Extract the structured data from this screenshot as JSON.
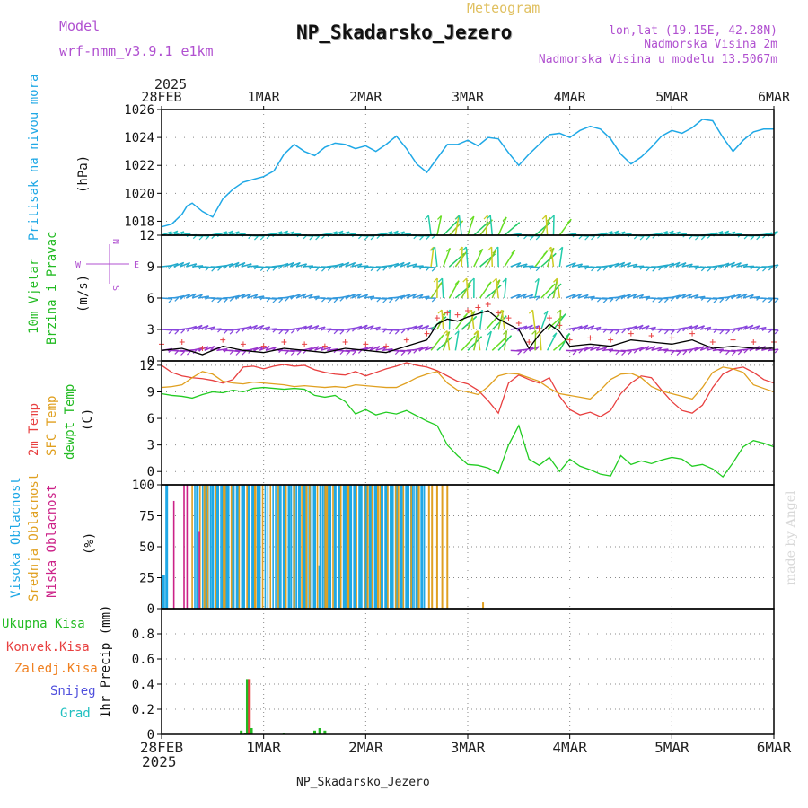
{
  "header": {
    "model_label": "Model",
    "model_name": "wrf-nmm_v3.9.1 e1km",
    "product": "Meteogram",
    "station": "NP_Skadarsko_Jezero",
    "lonlat": "lon,lat (19.15E, 42.28N)",
    "elevation": "Nadmorska Visina 2m",
    "model_elevation": "Nadmorska Visina u modelu 13.5067m",
    "footer": "NP_Skadarsko_Jezero",
    "credit": "made by Angel"
  },
  "colors": {
    "pressure": "#1fa8e6",
    "temp2m": "#e84040",
    "sfc": "#e0a020",
    "dewpt": "#22cc22",
    "high_cloud": "#1fa8e6",
    "mid_cloud": "#e0a020",
    "low_cloud": "#cc2288",
    "total_precip": "#22bb22",
    "conv_precip": "#e84040",
    "frozen": "#f08020",
    "snow": "#5050dd",
    "hail": "#20c0c0",
    "title": "#e0c060",
    "model": "#b050d0"
  },
  "time_axis": {
    "top_year": "2025",
    "bottom_year": "2025",
    "ticks": [
      "28FEB",
      "1MAR",
      "2MAR",
      "3MAR",
      "4MAR",
      "5MAR",
      "6MAR"
    ],
    "days": [
      0,
      1,
      2,
      3,
      4,
      5,
      6
    ]
  },
  "chart_data": [
    {
      "type": "line",
      "name": "pressure",
      "ylabel": "Pritisak na nivou mora",
      "unit": "(hPa)",
      "ylim": [
        1017,
        1026
      ],
      "yticks": [
        1018,
        1020,
        1022,
        1024,
        1026
      ],
      "x": [
        0.0,
        0.1,
        0.2,
        0.25,
        0.3,
        0.4,
        0.5,
        0.6,
        0.7,
        0.8,
        0.9,
        1.0,
        1.1,
        1.2,
        1.3,
        1.4,
        1.5,
        1.6,
        1.7,
        1.8,
        1.9,
        2.0,
        2.1,
        2.2,
        2.3,
        2.4,
        2.5,
        2.6,
        2.7,
        2.8,
        2.9,
        3.0,
        3.1,
        3.2,
        3.3,
        3.4,
        3.5,
        3.6,
        3.7,
        3.8,
        3.9,
        4.0,
        4.1,
        4.2,
        4.3,
        4.4,
        4.5,
        4.6,
        4.7,
        4.8,
        4.9,
        5.0,
        5.1,
        5.2,
        5.3,
        5.4,
        5.5,
        5.6,
        5.7,
        5.8,
        5.9,
        6.0
      ],
      "values": [
        1017.6,
        1017.8,
        1018.5,
        1019.1,
        1019.3,
        1018.7,
        1018.3,
        1019.6,
        1020.3,
        1020.8,
        1021.0,
        1021.2,
        1021.6,
        1022.8,
        1023.5,
        1023.0,
        1022.7,
        1023.3,
        1023.6,
        1023.5,
        1023.2,
        1023.4,
        1023.0,
        1023.5,
        1024.1,
        1023.2,
        1022.1,
        1021.5,
        1022.5,
        1023.5,
        1023.5,
        1023.8,
        1023.4,
        1024.0,
        1023.9,
        1022.9,
        1022.0,
        1022.8,
        1023.5,
        1024.2,
        1024.3,
        1024.0,
        1024.5,
        1024.8,
        1024.6,
        1023.9,
        1022.8,
        1022.1,
        1022.6,
        1023.3,
        1024.1,
        1024.5,
        1024.3,
        1024.7,
        1025.3,
        1025.2,
        1024.0,
        1023.0,
        1023.8,
        1024.4,
        1024.6,
        1024.6
      ]
    },
    {
      "type": "line",
      "name": "wind",
      "ylabel": "10m Vjetar",
      "ylabel2": "Brzina i Pravac",
      "unit": "(m/s)",
      "ylim": [
        0,
        12
      ],
      "yticks": [
        0,
        3,
        6,
        9,
        12
      ],
      "compass": [
        "W",
        "E",
        "N",
        "S"
      ],
      "x": [
        0.0,
        0.2,
        0.4,
        0.6,
        0.8,
        1.0,
        1.2,
        1.4,
        1.6,
        1.8,
        2.0,
        2.2,
        2.4,
        2.6,
        2.7,
        2.8,
        2.9,
        3.0,
        3.1,
        3.2,
        3.3,
        3.4,
        3.5,
        3.6,
        3.7,
        3.8,
        3.9,
        4.0,
        4.2,
        4.4,
        4.6,
        4.8,
        5.0,
        5.2,
        5.4,
        5.6,
        5.8,
        6.0
      ],
      "values": [
        1.0,
        1.2,
        0.6,
        1.4,
        1.0,
        0.8,
        1.2,
        1.0,
        0.8,
        1.2,
        1.0,
        0.8,
        1.4,
        2.0,
        3.5,
        4.0,
        3.8,
        4.2,
        4.5,
        4.8,
        4.0,
        3.5,
        3.0,
        1.2,
        2.5,
        3.5,
        2.8,
        1.4,
        1.6,
        1.4,
        2.0,
        1.8,
        1.6,
        2.0,
        1.2,
        1.4,
        1.2,
        1.2
      ],
      "barb_rows": [
        1,
        3,
        6,
        9,
        12
      ]
    },
    {
      "type": "line",
      "name": "temperature",
      "ylabel": "2m Temp",
      "ylabel2": "SFC Temp",
      "ylabel3": "dewpt Temp",
      "unit": "(C)",
      "ylim": [
        -1.5,
        12.5
      ],
      "yticks": [
        0,
        3,
        6,
        9,
        12
      ],
      "x": [
        0.0,
        0.1,
        0.2,
        0.3,
        0.4,
        0.5,
        0.6,
        0.7,
        0.8,
        0.9,
        1.0,
        1.1,
        1.2,
        1.3,
        1.4,
        1.5,
        1.6,
        1.7,
        1.8,
        1.9,
        2.0,
        2.1,
        2.2,
        2.3,
        2.4,
        2.5,
        2.6,
        2.7,
        2.8,
        2.9,
        3.0,
        3.1,
        3.2,
        3.3,
        3.4,
        3.5,
        3.6,
        3.7,
        3.8,
        3.9,
        4.0,
        4.1,
        4.2,
        4.3,
        4.4,
        4.5,
        4.6,
        4.7,
        4.8,
        4.9,
        5.0,
        5.1,
        5.2,
        5.3,
        5.4,
        5.5,
        5.6,
        5.7,
        5.8,
        5.9,
        6.0
      ],
      "series": [
        {
          "name": "2m Temp",
          "values": [
            12.0,
            11.2,
            10.8,
            10.6,
            10.5,
            10.3,
            10.0,
            10.4,
            11.8,
            11.9,
            11.6,
            11.9,
            12.1,
            11.9,
            12.0,
            11.5,
            11.2,
            11.0,
            10.9,
            11.3,
            10.8,
            11.2,
            11.6,
            11.9,
            12.3,
            12.0,
            11.8,
            11.4,
            10.8,
            10.2,
            9.9,
            9.2,
            8.0,
            6.6,
            10.0,
            10.9,
            10.4,
            10.0,
            10.6,
            8.5,
            7.0,
            6.4,
            6.7,
            6.2,
            6.9,
            8.8,
            10.0,
            10.8,
            10.6,
            9.2,
            7.9,
            6.9,
            6.6,
            7.5,
            9.5,
            11.0,
            11.6,
            11.8,
            11.2,
            10.4,
            10.0
          ]
        },
        {
          "name": "SFC Temp",
          "values": [
            9.5,
            9.6,
            9.8,
            10.6,
            11.3,
            11.0,
            10.2,
            10.0,
            9.9,
            10.1,
            10.0,
            9.9,
            9.8,
            9.6,
            9.7,
            9.6,
            9.5,
            9.6,
            9.5,
            9.8,
            9.7,
            9.6,
            9.5,
            9.5,
            10.0,
            10.6,
            11.0,
            11.3,
            10.0,
            9.2,
            9.0,
            8.7,
            9.6,
            10.8,
            11.1,
            11.0,
            10.6,
            10.2,
            9.4,
            8.8,
            8.6,
            8.4,
            8.2,
            9.2,
            10.4,
            11.0,
            11.1,
            10.6,
            9.6,
            9.1,
            8.8,
            8.5,
            8.2,
            9.5,
            11.2,
            11.8,
            11.6,
            11.2,
            9.8,
            9.4,
            9.0
          ]
        },
        {
          "name": "dewpt Temp",
          "values": [
            8.8,
            8.6,
            8.5,
            8.3,
            8.7,
            9.0,
            8.9,
            9.2,
            9.0,
            9.4,
            9.5,
            9.4,
            9.3,
            9.4,
            9.3,
            8.6,
            8.4,
            8.6,
            7.9,
            6.5,
            7.0,
            6.4,
            6.7,
            6.5,
            6.9,
            6.3,
            5.7,
            5.2,
            3.0,
            1.8,
            0.8,
            0.7,
            0.4,
            -0.2,
            3.0,
            5.2,
            1.4,
            0.7,
            1.6,
            0.0,
            1.4,
            0.6,
            0.2,
            -0.3,
            -0.5,
            1.8,
            0.8,
            1.2,
            0.9,
            1.3,
            1.6,
            1.4,
            0.6,
            0.8,
            0.3,
            -0.6,
            1.0,
            2.8,
            3.5,
            3.2,
            2.8
          ]
        }
      ]
    },
    {
      "type": "bar",
      "name": "clouds",
      "ylabel": "Visoka Oblacnost",
      "ylabel2": "Srednja Oblacnost",
      "ylabel3": "Niska Oblacnost",
      "unit": "(%)",
      "ylim": [
        0,
        100
      ],
      "yticks": [
        0,
        25,
        50,
        75,
        100
      ],
      "high_x": [
        0.05,
        0.35,
        0.45,
        0.5,
        0.55,
        0.6,
        0.65,
        0.7,
        0.75,
        0.8,
        0.85,
        0.9,
        0.95,
        1.15,
        1.2,
        1.25,
        1.3,
        1.35,
        1.4,
        1.45,
        1.5,
        1.55,
        1.6,
        1.65,
        1.7,
        1.75,
        1.8,
        1.85,
        1.9,
        1.95,
        2.0,
        2.05,
        2.1,
        2.15,
        2.2,
        2.25,
        2.3,
        2.35,
        2.4,
        2.45,
        2.5,
        2.55
      ],
      "high_values": [
        100,
        100,
        100,
        100,
        100,
        100,
        100,
        100,
        100,
        100,
        100,
        100,
        100,
        100,
        100,
        100,
        100,
        100,
        100,
        100,
        100,
        35,
        100,
        100,
        100,
        100,
        100,
        100,
        100,
        100,
        100,
        100,
        100,
        100,
        100,
        100,
        100,
        100,
        100,
        100,
        100,
        100
      ],
      "mid_x": [
        0.42,
        0.62,
        0.92,
        1.3,
        1.42,
        1.62,
        1.82,
        2.02,
        2.12,
        2.32,
        2.52,
        2.62,
        2.65,
        2.7,
        2.75,
        2.8,
        3.15
      ],
      "mid_values": [
        100,
        100,
        100,
        100,
        100,
        100,
        100,
        100,
        100,
        100,
        100,
        100,
        100,
        100,
        100,
        100,
        5
      ],
      "low_x": [
        0.12,
        0.22,
        0.25,
        0.37
      ],
      "low_values": [
        87,
        100,
        100,
        62
      ]
    },
    {
      "type": "bar",
      "name": "precipitation",
      "ylabel": "1hr Precip (mm)",
      "legend": [
        "Ukupna Kisa",
        "Konvek.Kisa",
        "Zaledj.Kisa",
        "Snijeg",
        "Grad"
      ],
      "ylim": [
        0,
        1.0
      ],
      "yticks": [
        0,
        0.2,
        0.4,
        0.6,
        0.8
      ],
      "x": [
        0.78,
        0.82,
        0.84,
        0.86,
        0.88,
        1.2,
        1.5,
        1.55,
        1.6
      ],
      "values": [
        0.03,
        0.01,
        0.44,
        0.44,
        0.05,
        0.01,
        0.03,
        0.05,
        0.03
      ]
    }
  ]
}
